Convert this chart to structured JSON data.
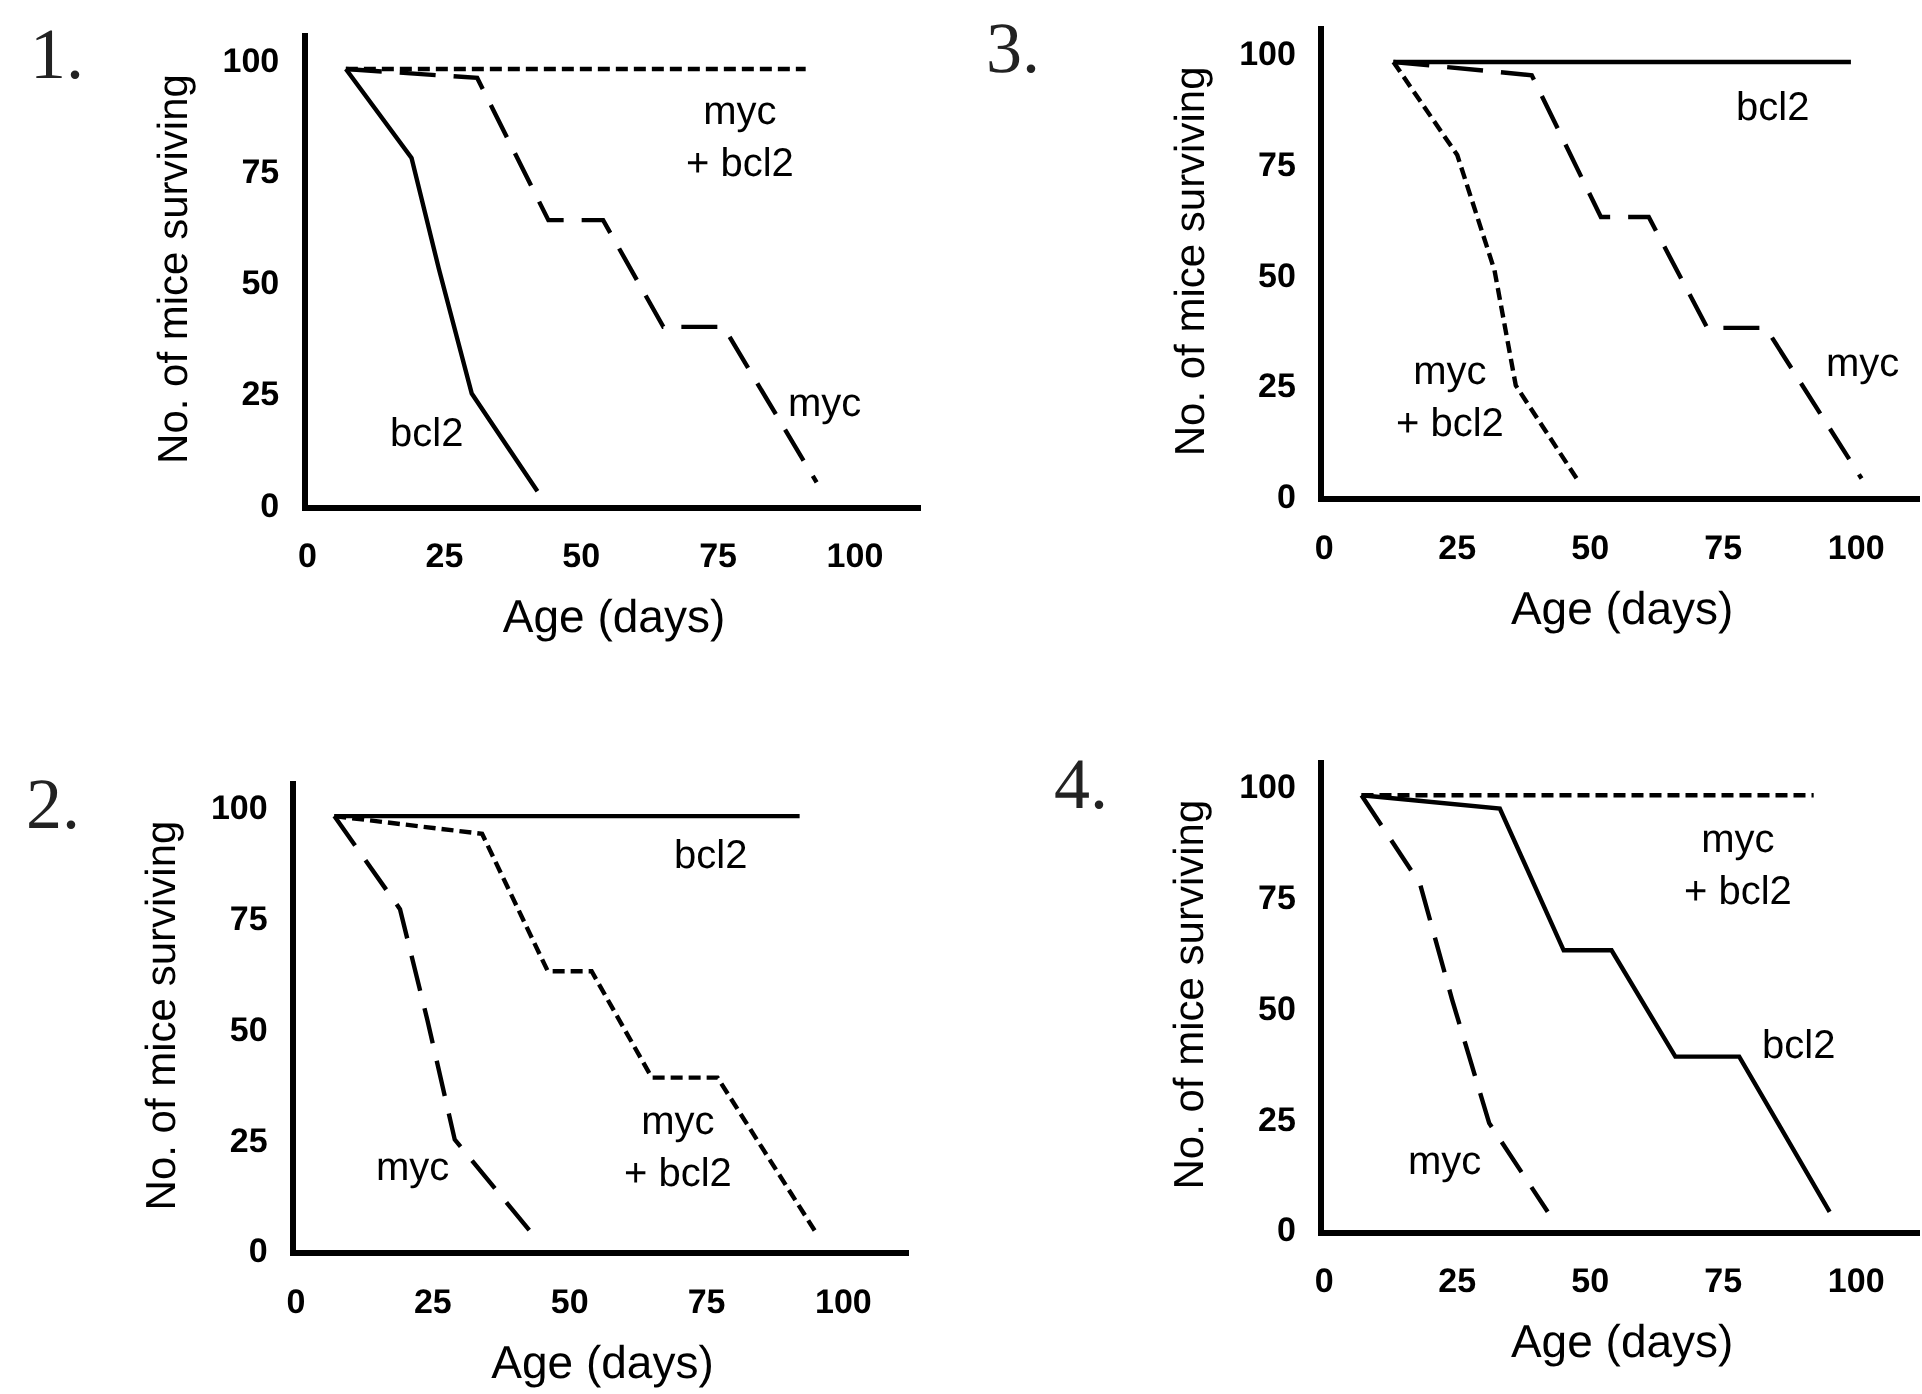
{
  "chart_data": [
    {
      "type": "line",
      "title": "1.",
      "xlabel": "Age (days)",
      "ylabel": "No. of mice surviving",
      "xlim": [
        0,
        112
      ],
      "ylim": [
        0,
        106
      ],
      "xticks": [
        0,
        25,
        50,
        75,
        100
      ],
      "yticks": [
        0,
        25,
        50,
        75,
        100
      ],
      "grid": false,
      "legend": false,
      "marker": "none",
      "series": [
        {
          "name": "bcl2",
          "color": "#000000",
          "line_style": "solid",
          "x": [
            7,
            19,
            24,
            30,
            42
          ],
          "values": [
            98,
            78,
            53,
            25,
            3
          ]
        },
        {
          "name": "myc",
          "color": "#000000",
          "line_style": "dashed",
          "x": [
            7,
            31,
            44,
            54,
            65,
            76,
            93
          ],
          "values": [
            98,
            96,
            64,
            64,
            40,
            40,
            5
          ]
        },
        {
          "name": "myc\n+ bcl2",
          "color": "#000000",
          "line_style": "dotted",
          "x": [
            7,
            91
          ],
          "values": [
            98,
            98
          ]
        }
      ]
    },
    {
      "type": "line",
      "title": "3.",
      "xlabel": "Age (days)",
      "ylabel": "No. of mice surviving",
      "xlim": [
        0,
        112
      ],
      "ylim": [
        0,
        106
      ],
      "xticks": [
        0,
        25,
        50,
        75,
        100
      ],
      "yticks": [
        0,
        25,
        50,
        75,
        100
      ],
      "grid": false,
      "legend": false,
      "marker": "none",
      "series": [
        {
          "name": "bcl2",
          "color": "#000000",
          "line_style": "solid",
          "x": [
            13,
            99
          ],
          "values": [
            98,
            98
          ]
        },
        {
          "name": "myc",
          "color": "#000000",
          "line_style": "dashed",
          "x": [
            13,
            39,
            52,
            61,
            72,
            83,
            101
          ],
          "values": [
            98,
            95,
            63,
            63,
            38,
            38,
            4
          ]
        },
        {
          "name": "myc\n+ bcl2",
          "color": "#000000",
          "line_style": "dotted",
          "x": [
            13,
            25,
            32,
            36,
            48
          ],
          "values": [
            98,
            77,
            51,
            25,
            3
          ]
        }
      ]
    },
    {
      "type": "line",
      "title": "2.",
      "xlabel": "Age (days)",
      "ylabel": "No. of mice surviving",
      "xlim": [
        0,
        112
      ],
      "ylim": [
        0,
        106
      ],
      "xticks": [
        0,
        25,
        50,
        75,
        100
      ],
      "yticks": [
        0,
        25,
        50,
        75,
        100
      ],
      "grid": false,
      "legend": false,
      "marker": "none",
      "series": [
        {
          "name": "bcl2",
          "color": "#000000",
          "line_style": "solid",
          "x": [
            7,
            92
          ],
          "values": [
            98,
            98
          ]
        },
        {
          "name": "myc",
          "color": "#000000",
          "line_style": "dashed",
          "x": [
            7,
            19,
            24,
            29,
            43
          ],
          "values": [
            98,
            77,
            52,
            25,
            4
          ]
        },
        {
          "name": "myc\n+ bcl2",
          "color": "#000000",
          "line_style": "dotted",
          "x": [
            7,
            34,
            46,
            54,
            65,
            77,
            95
          ],
          "values": [
            98,
            94,
            63,
            63,
            39,
            39,
            4
          ]
        }
      ]
    },
    {
      "type": "line",
      "title": "4.",
      "xlabel": "Age (days)",
      "ylabel": "No. of mice surviving",
      "xlim": [
        0,
        112
      ],
      "ylim": [
        0,
        106
      ],
      "xticks": [
        0,
        25,
        50,
        75,
        100
      ],
      "yticks": [
        0,
        25,
        50,
        75,
        100
      ],
      "grid": false,
      "legend": false,
      "marker": "none",
      "series": [
        {
          "name": "bcl2",
          "color": "#000000",
          "line_style": "solid",
          "x": [
            7,
            33,
            45,
            54,
            66,
            78,
            95
          ],
          "values": [
            98,
            95,
            63,
            63,
            39,
            39,
            4
          ]
        },
        {
          "name": "myc",
          "color": "#000000",
          "line_style": "dashed",
          "x": [
            7,
            18,
            24,
            31,
            42
          ],
          "values": [
            98,
            78,
            52,
            24,
            4
          ]
        },
        {
          "name": "myc\n+ bcl2",
          "color": "#000000",
          "line_style": "dotted",
          "x": [
            7,
            92
          ],
          "values": [
            98,
            98
          ]
        }
      ]
    }
  ]
}
